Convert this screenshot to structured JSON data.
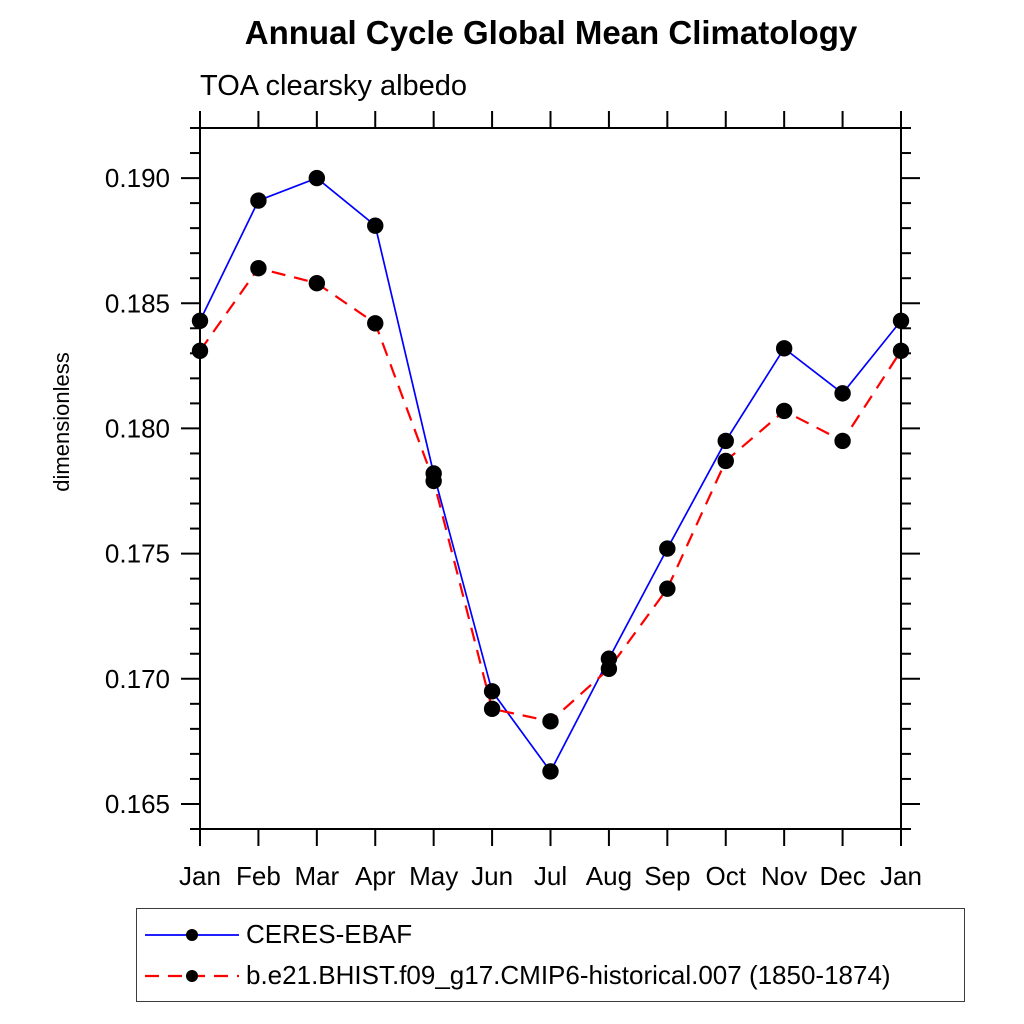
{
  "title": "Annual Cycle Global Mean Climatology",
  "subtitle": "TOA clearsky albedo",
  "legend": {
    "entries": [
      {
        "label": "CERES-EBAF"
      },
      {
        "label": "b.e21.BHIST.f09_g17.CMIP6-historical.007 (1850-1874)"
      }
    ]
  },
  "colors": {
    "obs_line": "#0000ff",
    "model_line": "#ff0000",
    "marker": "#000000",
    "axis": "#000000"
  },
  "chart_data": {
    "type": "line",
    "title": "Annual Cycle Global Mean Climatology",
    "subtitle": "TOA clearsky albedo",
    "xlabel": "",
    "ylabel": "dimensionless",
    "x_tick_labels": [
      "Jan",
      "Feb",
      "Mar",
      "Apr",
      "May",
      "Jun",
      "Jul",
      "Aug",
      "Sep",
      "Oct",
      "Nov",
      "Dec",
      "Jan"
    ],
    "y_tick_values": [
      0.165,
      0.17,
      0.175,
      0.18,
      0.185,
      0.19
    ],
    "y_tick_labels": [
      "0.165",
      "0.170",
      "0.175",
      "0.180",
      "0.185",
      "0.190"
    ],
    "ylim": [
      0.164,
      0.192
    ],
    "minor_tick_step": 0.001,
    "grid": false,
    "legend_position": "bottom-left box",
    "series": [
      {
        "name": "CERES-EBAF",
        "color": "#0000ff",
        "style": "solid",
        "marker": "filled-circle",
        "marker_color": "#000000",
        "values": [
          0.1843,
          0.1891,
          0.19,
          0.1881,
          0.1782,
          0.1695,
          0.1663,
          0.1708,
          0.1752,
          0.1795,
          0.1832,
          0.1814,
          0.1843
        ]
      },
      {
        "name": "b.e21.BHIST.f09_g17.CMIP6-historical.007 (1850-1874)",
        "color": "#ff0000",
        "style": "dashed",
        "marker": "filled-circle",
        "marker_color": "#000000",
        "values": [
          0.1831,
          0.1864,
          0.1858,
          0.1842,
          0.1779,
          0.1688,
          0.1683,
          0.1704,
          0.1736,
          0.1787,
          0.1807,
          0.1795,
          0.1831
        ]
      }
    ]
  }
}
